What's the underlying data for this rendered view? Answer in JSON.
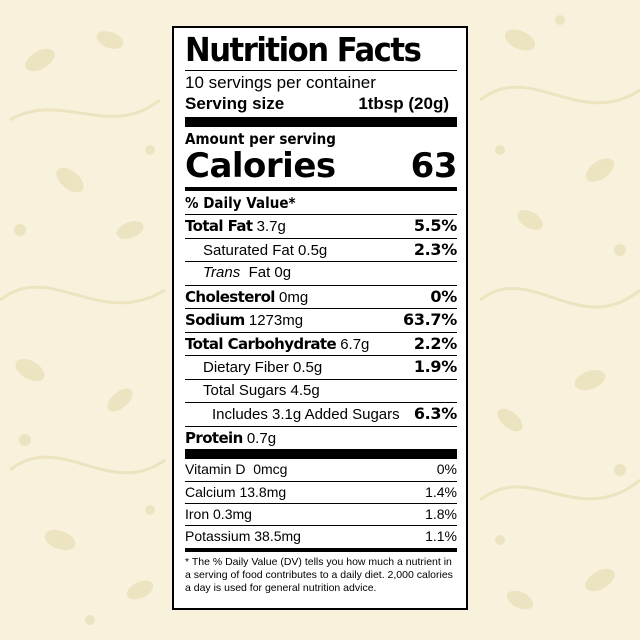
{
  "colors": {
    "background": "#f8f2dc",
    "pattern": "#efe6c4",
    "label_bg": "#ffffff",
    "ink": "#000000"
  },
  "title": "Nutrition Facts",
  "servings": "10 servings per container",
  "serving_size": {
    "label": "Serving size",
    "value": "1tbsp (20g)"
  },
  "amount_per_serving": "Amount per serving",
  "calories": {
    "label": "Calories",
    "value": "63"
  },
  "dv_header": "% Daily Value*",
  "nutrients": [
    {
      "name": "Total Fat",
      "amount": "3.7g",
      "dv": "5.5%"
    },
    {
      "name": "Saturated Fat 0.5g",
      "dv": "2.3%"
    },
    {
      "prefix": "Trans",
      "name": "Fat 0g",
      "dv": ""
    },
    {
      "name": "Cholesterol",
      "amount": "0mg",
      "dv": "0%"
    },
    {
      "name": "Sodium",
      "amount": "1273mg",
      "dv": "63.7%"
    },
    {
      "name": "Total Carbohydrate",
      "amount": "6.7g",
      "dv": "2.2%"
    },
    {
      "name": "Dietary Fiber 0.5g",
      "dv": "1.9%"
    },
    {
      "name": "Total Sugars 4.5g",
      "dv": ""
    },
    {
      "name": "Includes 3.1g Added Sugars",
      "dv": "6.3%"
    },
    {
      "name": "Protein",
      "amount": "0.7g",
      "dv": ""
    }
  ],
  "vitamins": [
    {
      "name": "Vitamin D  0mcg",
      "dv": "0%"
    },
    {
      "name": "Calcium 13.8mg",
      "dv": "1.4%"
    },
    {
      "name": "Iron 0.3mg",
      "dv": "1.8%"
    },
    {
      "name": "Potassium 38.5mg",
      "dv": "1.1%"
    }
  ],
  "footnote": "* The % Daily Value (DV) tells you how much a nutrient in a serving of food contributes to a daily diet. 2,000 calories a day is used for general nutrition advice."
}
